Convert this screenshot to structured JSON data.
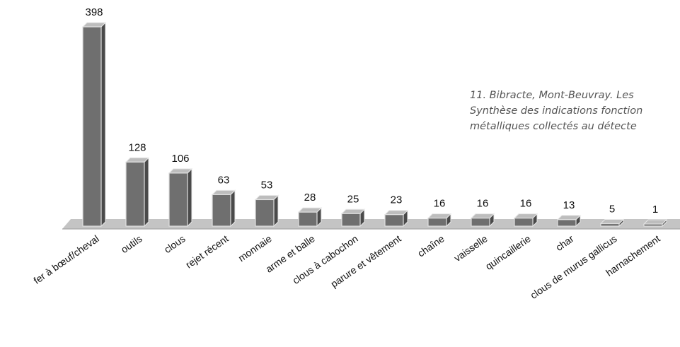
{
  "caption": {
    "line1": "11. Bibracte, Mont-Beuvray. Les",
    "line2": "Synthèse des indications fonction",
    "line3": "métalliques collectés au détecte"
  },
  "chart_data": {
    "type": "bar",
    "categories": [
      "fer à bœuf/cheval",
      "outils",
      "clous",
      "rejet récent",
      "monnaie",
      "arme et balle",
      "clous à cabochon",
      "parure et vêtement",
      "chaîne",
      "vaisselle",
      "quincaillerie",
      "char",
      "clous de murus gallicus",
      "harnachement"
    ],
    "values": [
      398,
      128,
      106,
      63,
      53,
      28,
      25,
      23,
      16,
      16,
      16,
      13,
      5,
      1
    ],
    "value_labels": [
      "398",
      "128",
      "106",
      "63",
      "53",
      "28",
      "25",
      "23",
      "16",
      "16",
      "16",
      "13",
      "5",
      "1"
    ],
    "title": "",
    "xlabel": "",
    "ylabel": "",
    "ylim": [
      0,
      398
    ],
    "grid": false,
    "legend": "none",
    "colors": {
      "bar_front": "#6f6f6f",
      "bar_side": "#4a4a4a",
      "bar_top": "#bdbdbd",
      "floor": "#c4c4c4"
    }
  }
}
